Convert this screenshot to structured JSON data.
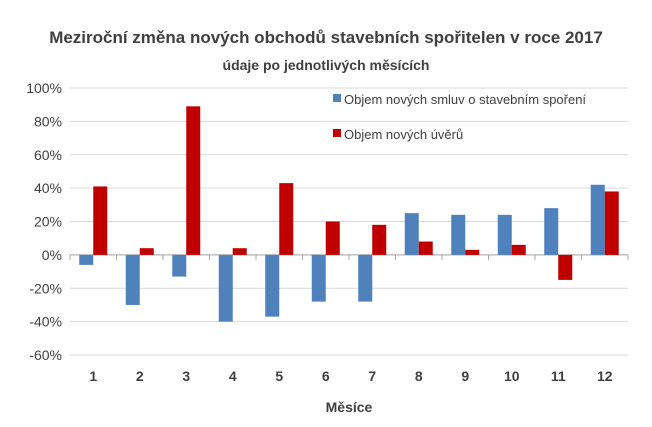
{
  "chart_data": {
    "type": "bar",
    "title": "Meziroční změna nových obchodů stavebních spořitelen v roce 2017",
    "subtitle": "údaje po jednotlivých měsících",
    "xlabel": "Měsíce",
    "ylabel": "",
    "ylim": [
      -60,
      100
    ],
    "yticks": [
      -60,
      -40,
      -20,
      0,
      20,
      40,
      60,
      80,
      100
    ],
    "ytick_labels": [
      "-60%",
      "-40%",
      "-20%",
      "0%",
      "20%",
      "40%",
      "60%",
      "80%",
      "100%"
    ],
    "categories": [
      "1",
      "2",
      "3",
      "4",
      "5",
      "6",
      "7",
      "8",
      "9",
      "10",
      "11",
      "12"
    ],
    "series": [
      {
        "name": "Objem nových smluv o stavebním spoření",
        "color": "#4f81bd",
        "values": [
          -6,
          -30,
          -13,
          -40,
          -37,
          -28,
          -28,
          25,
          24,
          24,
          28,
          42
        ]
      },
      {
        "name": "Objem nových úvěrů",
        "color": "#c00000",
        "values": [
          41,
          4,
          89,
          4,
          43,
          20,
          18,
          8,
          3,
          6,
          -15,
          38
        ]
      }
    ],
    "grid": true,
    "legend_position": "top-right"
  }
}
